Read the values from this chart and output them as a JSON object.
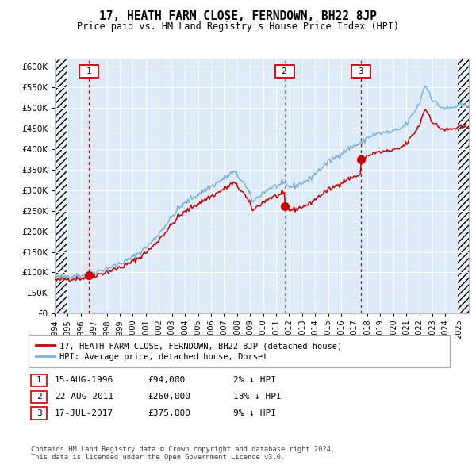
{
  "title": "17, HEATH FARM CLOSE, FERNDOWN, BH22 8JP",
  "subtitle": "Price paid vs. HM Land Registry's House Price Index (HPI)",
  "legend_line1": "17, HEATH FARM CLOSE, FERNDOWN, BH22 8JP (detached house)",
  "legend_line2": "HPI: Average price, detached house, Dorset",
  "footer1": "Contains HM Land Registry data © Crown copyright and database right 2024.",
  "footer2": "This data is licensed under the Open Government Licence v3.0.",
  "transactions": [
    {
      "num": 1,
      "date": "15-AUG-1996",
      "price": 94000,
      "pct": "2%",
      "dir": "↓",
      "year": 1996.62
    },
    {
      "num": 2,
      "date": "22-AUG-2011",
      "price": 260000,
      "pct": "18%",
      "dir": "↓",
      "year": 2011.64
    },
    {
      "num": 3,
      "date": "17-JUL-2017",
      "price": 375000,
      "pct": "9%",
      "dir": "↓",
      "year": 2017.54
    }
  ],
  "hpi_color": "#7ab4d8",
  "price_color": "#cc0000",
  "bg_color": "#ddeaf7",
  "grid_color": "#ffffff",
  "ylim": [
    0,
    620000
  ],
  "yticks": [
    0,
    50000,
    100000,
    150000,
    200000,
    250000,
    300000,
    350000,
    400000,
    450000,
    500000,
    550000,
    600000
  ],
  "xlim_start": 1994.0,
  "xlim_end": 2025.8
}
